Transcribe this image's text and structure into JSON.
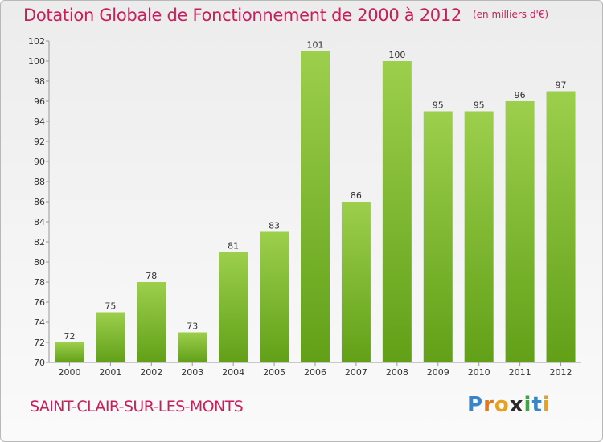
{
  "title": "Dotation Globale de Fonctionnement de 2000 à 2012",
  "unit": "(en milliers d'€)",
  "commune": "SAINT-CLAIR-SUR-LES-MONTS",
  "brand": {
    "text": "Proxiti",
    "letters": [
      "P",
      "r",
      "o",
      "x",
      "i",
      "t",
      "i"
    ],
    "letter_colors": [
      "#3a84c8",
      "#e0781e",
      "#e8a020",
      "#2b2b2b",
      "#3aa842",
      "#3a84c8",
      "#e8a020"
    ]
  },
  "colors": {
    "title": "#c81e5a",
    "bar_light": "#9ccf4c",
    "bar_dark": "#62a018"
  },
  "chart_data": {
    "type": "bar",
    "title": "Dotation Globale de Fonctionnement de 2000 à 2012",
    "subtitle": "(en milliers d'€)",
    "xlabel": "",
    "ylabel": "",
    "categories": [
      "2000",
      "2001",
      "2002",
      "2003",
      "2004",
      "2005",
      "2006",
      "2007",
      "2008",
      "2009",
      "2010",
      "2011",
      "2012"
    ],
    "values": [
      72,
      75,
      78,
      73,
      81,
      83,
      101,
      86,
      100,
      95,
      95,
      96,
      97
    ],
    "ylim": [
      70,
      102
    ],
    "yticks": [
      70,
      72,
      74,
      76,
      78,
      80,
      82,
      84,
      86,
      88,
      90,
      92,
      94,
      96,
      98,
      100,
      102
    ],
    "grid": false,
    "data_labels": true
  }
}
